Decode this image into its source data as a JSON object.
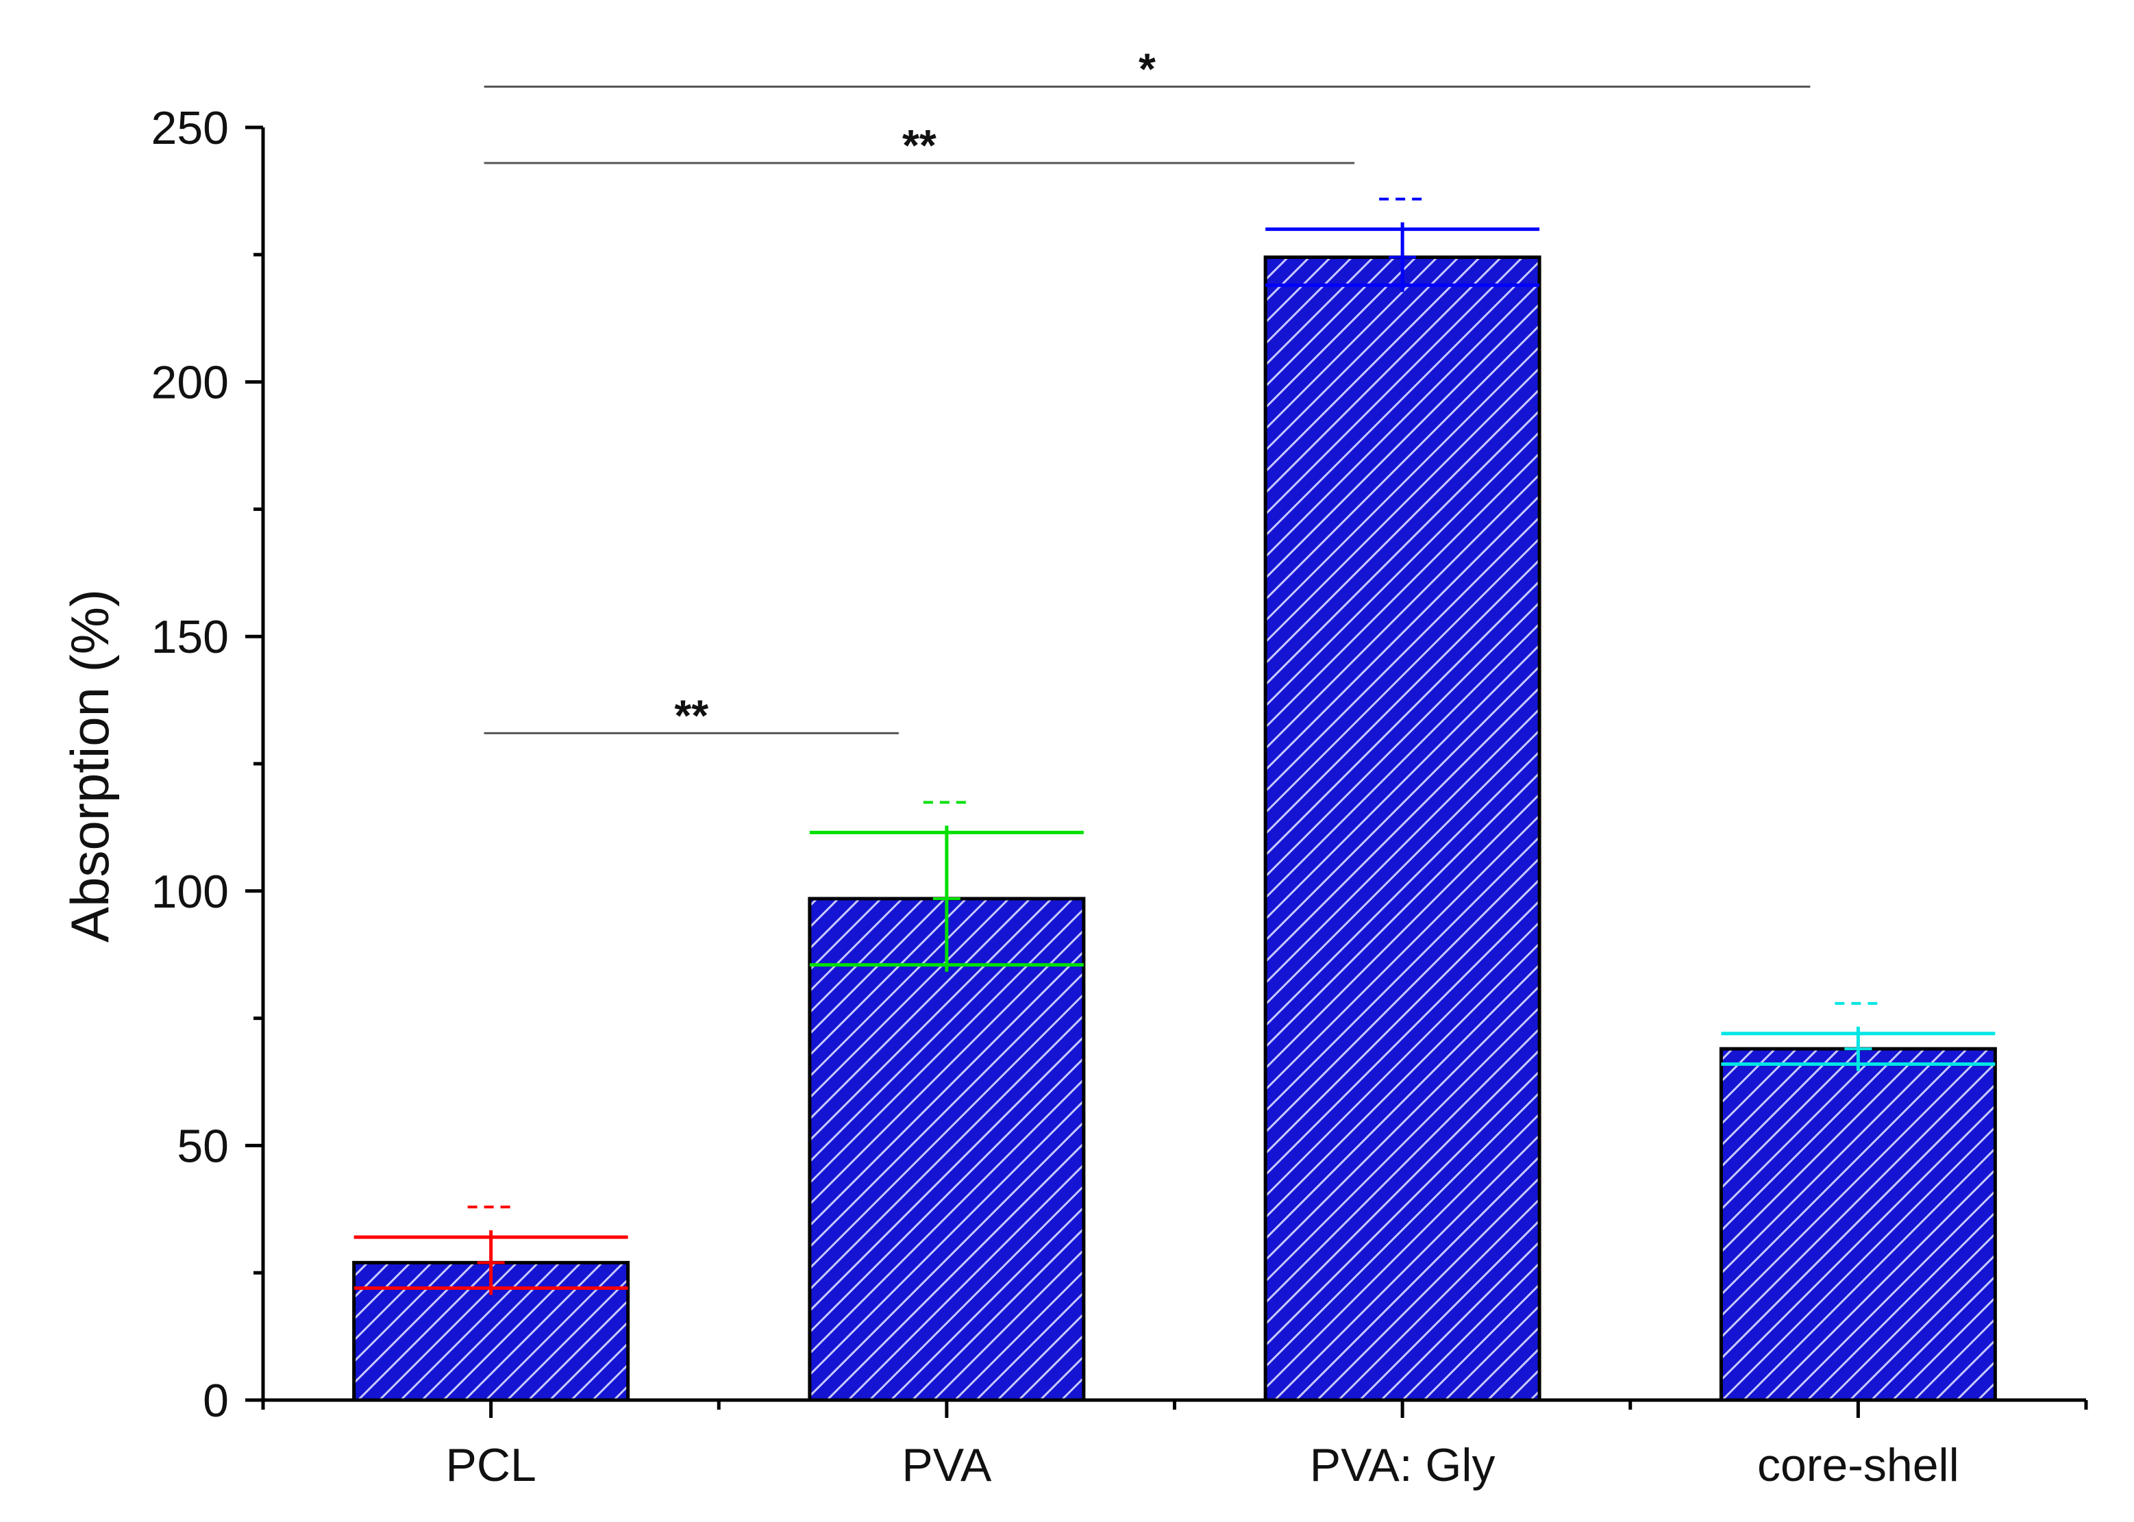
{
  "chart_data": {
    "type": "bar",
    "title": "",
    "xlabel": "",
    "ylabel": "Absorption (%)",
    "ylim": [
      0,
      250
    ],
    "yticks": [
      0,
      50,
      100,
      150,
      200,
      250
    ],
    "categories": [
      "PCL",
      "PVA",
      "PVA: Gly",
      "core-shell"
    ],
    "values": [
      27,
      98.5,
      224.5,
      69
    ],
    "errors": [
      5,
      13,
      5.5,
      3
    ],
    "error_colors": [
      "#ff0000",
      "#00e000",
      "#0000ff",
      "#00e5e5"
    ],
    "bar_color": "#1414d2",
    "bar_pattern": "diagonal-hatch",
    "significance": [
      {
        "from": "PCL",
        "to": "core-shell",
        "label": "*",
        "level": 258
      },
      {
        "from": "PCL",
        "to": "PVA: Gly",
        "label": "**",
        "level": 243
      },
      {
        "from": "PCL",
        "to": "PVA",
        "label": "**",
        "level": 131
      }
    ]
  }
}
